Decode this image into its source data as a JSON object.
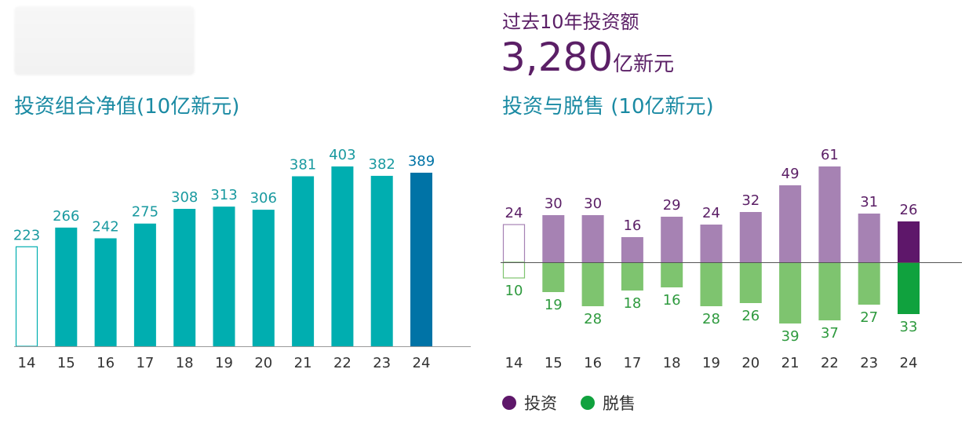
{
  "left_title": "投资组合净值(10亿新元)",
  "right_subtitle": "过去10年投资额",
  "right_total": {
    "value": "3,280",
    "unit": "亿新元"
  },
  "right_title": "投资与脱售 (10亿新元)",
  "legend": [
    {
      "label": "投资",
      "color": "#5e176a"
    },
    {
      "label": "脱售",
      "color": "#10a23e"
    }
  ],
  "chart_data": [
    {
      "type": "bar",
      "title": "投资组合净值(10亿新元)",
      "categories": [
        "14",
        "15",
        "16",
        "17",
        "18",
        "19",
        "20",
        "21",
        "22",
        "23",
        "24"
      ],
      "values": [
        223,
        266,
        242,
        275,
        308,
        313,
        306,
        381,
        403,
        382,
        389
      ],
      "ylim": [
        0,
        403
      ],
      "grid": false,
      "colors": {
        "base": "#00aeb0",
        "highlight": "#0073a6",
        "first_outline": "#00aeb0"
      }
    },
    {
      "type": "bar",
      "title": "投资与脱售 (10亿新元)",
      "categories": [
        "14",
        "15",
        "16",
        "17",
        "18",
        "19",
        "20",
        "21",
        "22",
        "23",
        "24"
      ],
      "series": [
        {
          "name": "投资",
          "values": [
            24,
            30,
            30,
            16,
            29,
            24,
            32,
            49,
            61,
            31,
            26
          ]
        },
        {
          "name": "脱售",
          "values": [
            10,
            19,
            28,
            18,
            16,
            28,
            26,
            39,
            37,
            27,
            33
          ]
        }
      ],
      "grid": false,
      "legend_position": "bottom-left",
      "colors": {
        "invest": "#a682b3",
        "invest_highlight": "#5e176a",
        "divest": "#7ec46f",
        "divest_highlight": "#10a23e",
        "invest_label": "#5b1f66",
        "divest_label": "#2e9a3e"
      }
    }
  ]
}
